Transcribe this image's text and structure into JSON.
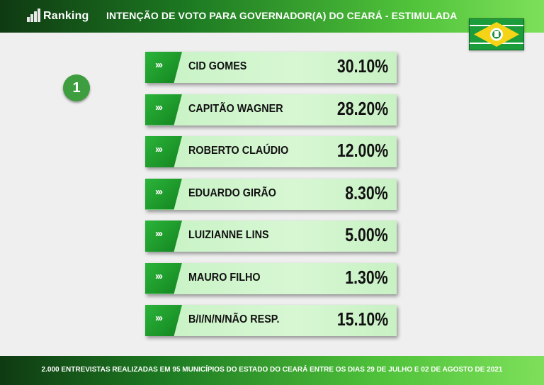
{
  "brand": {
    "name": "Ranking"
  },
  "title": "INTENÇÃO DE VOTO PARA GOVERNADOR(A) DO CEARÁ - ESTIMULADA",
  "badge": "1",
  "chart_data": {
    "type": "bar",
    "title": "INTENÇÃO DE VOTO PARA GOVERNADOR(A) DO CEARÁ - ESTIMULADA",
    "categories": [
      "CID GOMES",
      "CAPITÃO WAGNER",
      "ROBERTO CLAÚDIO",
      "EDUARDO GIRÃO",
      "LUIZIANNE LINS",
      "MAURO FILHO",
      "B/I/N/N/NÃO RESP."
    ],
    "values": [
      30.1,
      28.2,
      12.0,
      8.3,
      5.0,
      1.3,
      15.1
    ],
    "labels": [
      "30.10%",
      "28.20%",
      "12.00%",
      "8.30%",
      "5.00%",
      "1.30%",
      "15.10%"
    ],
    "unit": "%",
    "marker": "›››"
  },
  "footer": "2.000 ENTREVISTAS REALIZADAS EM 95 MUNICÍPIOS DO ESTADO DO CEARÁ ENTRE OS DIAS 29 DE JULHO E 02 DE AGOSTO DE 2021",
  "colors": {
    "accent": "#1d7a22",
    "bar_fill": "#d0f4cc",
    "tab": "#1a9a2a",
    "badge": "#3e9d3e"
  },
  "icons": {
    "logo": "bar-chart-icon",
    "flag": "ceara-flag-icon"
  }
}
